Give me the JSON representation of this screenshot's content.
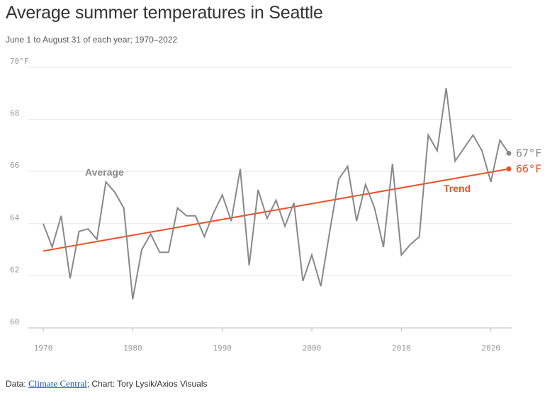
{
  "header": {
    "title": "Average summer temperatures in Seattle",
    "subtitle": "June 1 to August 31 of each year; 1970–2022"
  },
  "footer": {
    "data_prefix": "Data:",
    "source_link": "Climate Central",
    "credit": "; Chart: Tory Lysik/Axios Visuals"
  },
  "colors": {
    "average": "#888888",
    "trend": "#f04e23",
    "grid": "#e6e6e6",
    "axis": "#bbbbbb"
  },
  "chart_data": {
    "type": "line",
    "title": "Average summer temperatures in Seattle",
    "subtitle": "June 1 to August 31 of each year; 1970–2022",
    "xlim": [
      1970,
      2022
    ],
    "ylim": [
      60,
      70
    ],
    "x_ticks": [
      1970,
      1980,
      1990,
      2000,
      2010,
      2020
    ],
    "y_ticks": [
      {
        "value": 70,
        "label": "70°F"
      },
      {
        "value": 68,
        "label": "68"
      },
      {
        "value": 66,
        "label": "66"
      },
      {
        "value": 64,
        "label": "64"
      },
      {
        "value": 62,
        "label": "62"
      },
      {
        "value": 60,
        "label": "60"
      }
    ],
    "grid": true,
    "series": [
      {
        "name": "Average",
        "x": [
          1970,
          1971,
          1972,
          1973,
          1974,
          1975,
          1976,
          1977,
          1978,
          1979,
          1980,
          1981,
          1982,
          1983,
          1984,
          1985,
          1986,
          1987,
          1988,
          1989,
          1990,
          1991,
          1992,
          1993,
          1994,
          1995,
          1996,
          1997,
          1998,
          1999,
          2000,
          2001,
          2002,
          2003,
          2004,
          2005,
          2006,
          2007,
          2008,
          2009,
          2010,
          2011,
          2012,
          2013,
          2014,
          2015,
          2016,
          2017,
          2018,
          2019,
          2020,
          2021,
          2022
        ],
        "values": [
          64.0,
          63.1,
          64.3,
          61.9,
          63.7,
          63.8,
          63.4,
          65.6,
          65.2,
          64.6,
          61.1,
          63.0,
          63.6,
          62.9,
          62.9,
          64.6,
          64.3,
          64.3,
          63.5,
          64.4,
          65.1,
          64.1,
          66.1,
          62.4,
          65.3,
          64.2,
          64.9,
          63.9,
          64.8,
          61.8,
          62.8,
          61.6,
          63.7,
          65.7,
          66.2,
          64.1,
          65.5,
          64.6,
          63.1,
          66.3,
          62.8,
          63.2,
          63.5,
          67.4,
          66.8,
          69.2,
          66.4,
          66.9,
          67.4,
          66.8,
          65.6,
          67.2,
          66.7
        ],
        "end_label": "67°F"
      },
      {
        "name": "Trend",
        "x": [
          1970,
          2022
        ],
        "values": [
          62.95,
          66.1
        ],
        "end_label": "66°F"
      }
    ]
  }
}
